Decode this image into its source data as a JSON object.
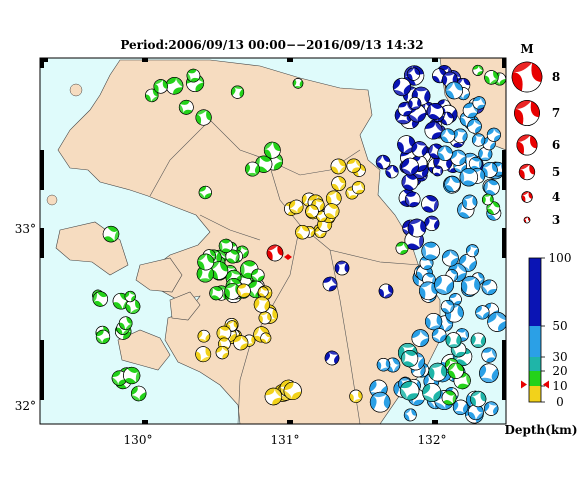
{
  "title": "Period:2006/09/13 00:00−−2016/09/13 14:32",
  "axes": {
    "lon_ticks": [
      "130°",
      "131°",
      "132°"
    ],
    "lat_ticks": [
      "33°",
      "32°"
    ]
  },
  "magnitude_legend": {
    "title": "M",
    "items": [
      {
        "label": "8",
        "m": 8
      },
      {
        "label": "7",
        "m": 7
      },
      {
        "label": "6",
        "m": 6
      },
      {
        "label": "5",
        "m": 5
      },
      {
        "label": "4",
        "m": 4
      },
      {
        "label": "3",
        "m": 3
      }
    ]
  },
  "depth_scale": {
    "label": "Depth(km)",
    "ticks": [
      "100",
      "50",
      "30",
      "20",
      "10",
      "0"
    ],
    "bands": [
      {
        "from": 0,
        "to": 10,
        "color": "#f2d21b"
      },
      {
        "from": 10,
        "to": 20,
        "color": "#24d21a"
      },
      {
        "from": 20,
        "to": 30,
        "color": "#1fb5a8"
      },
      {
        "from": 30,
        "to": 50,
        "color": "#2ba0e6"
      },
      {
        "from": 50,
        "to": 100,
        "color": "#0a14b4"
      }
    ],
    "current_marker_depth": 11
  },
  "colors": {
    "land": "#f6dcc0",
    "sea": "#dffbfb",
    "mainshock": "#e80000",
    "deep": "#0a14b4",
    "mid": "#2ba0e6",
    "shallow_green": "#24d21a",
    "shallow_yellow": "#f2d21b"
  },
  "events_note": "Focal mechanism beachballs colored by depth"
}
